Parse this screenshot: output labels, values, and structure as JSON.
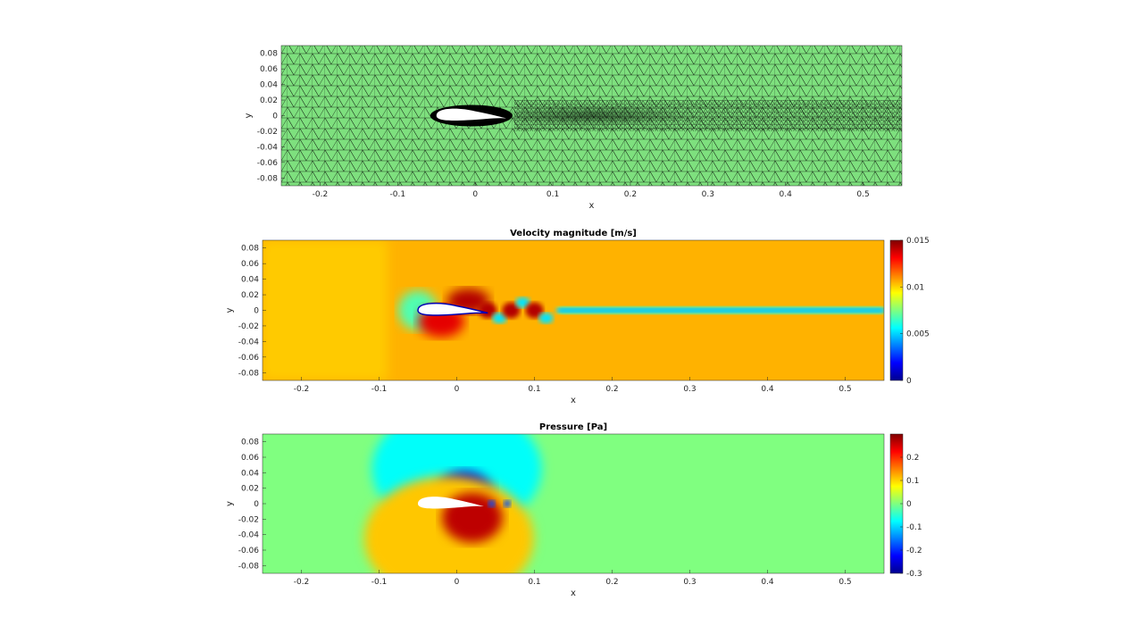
{
  "chart_data": [
    {
      "type": "mesh",
      "title": "",
      "xlabel": "x",
      "ylabel": "y",
      "xlim": [
        -0.25,
        0.55
      ],
      "ylim": [
        -0.09,
        0.09
      ],
      "xticks": [
        -0.2,
        -0.1,
        0,
        0.1,
        0.2,
        0.3,
        0.4,
        0.5
      ],
      "yticks": [
        0.08,
        0.06,
        0.04,
        0.02,
        0,
        -0.02,
        -0.04,
        -0.06,
        -0.08
      ],
      "xtick_labels": [
        "-0.2",
        "-0.1",
        "0",
        "0.1",
        "0.2",
        "0.3",
        "0.4",
        "0.5"
      ],
      "ytick_labels": [
        "0.08",
        "0.06",
        "0.04",
        "0.02",
        "0",
        "-0.02",
        "-0.04",
        "-0.06",
        "-0.08"
      ],
      "fill_color": "#7ee07e",
      "edge_color": "#000000",
      "airfoil_x": [
        -0.05,
        0.04
      ]
    },
    {
      "type": "heatmap",
      "title": "Velocity magnitude [m/s]",
      "xlabel": "x",
      "ylabel": "y",
      "xlim": [
        -0.25,
        0.55
      ],
      "ylim": [
        -0.09,
        0.09
      ],
      "xticks": [
        -0.2,
        -0.1,
        0,
        0.1,
        0.2,
        0.3,
        0.4,
        0.5
      ],
      "yticks": [
        0.08,
        0.06,
        0.04,
        0.02,
        0,
        -0.02,
        -0.04,
        -0.06,
        -0.08
      ],
      "xtick_labels": [
        "-0.2",
        "-0.1",
        "0",
        "0.1",
        "0.2",
        "0.3",
        "0.4",
        "0.5"
      ],
      "ytick_labels": [
        "0.08",
        "0.06",
        "0.04",
        "0.02",
        "0",
        "-0.02",
        "-0.04",
        "-0.06",
        "-0.08"
      ],
      "colormap": "jet",
      "clim": [
        0,
        0.015
      ],
      "colorbar_ticks": [
        0.015,
        0.01,
        0.005,
        0
      ],
      "colorbar_labels": [
        "0.015",
        "0.01",
        "0.005",
        "0"
      ],
      "freestream": 0.0105
    },
    {
      "type": "heatmap",
      "title": "Pressure [Pa]",
      "xlabel": "x",
      "ylabel": "y",
      "xlim": [
        -0.25,
        0.55
      ],
      "ylim": [
        -0.09,
        0.09
      ],
      "xticks": [
        -0.2,
        -0.1,
        0,
        0.1,
        0.2,
        0.3,
        0.4,
        0.5
      ],
      "yticks": [
        0.08,
        0.06,
        0.04,
        0.02,
        0,
        -0.02,
        -0.04,
        -0.06,
        -0.08
      ],
      "xtick_labels": [
        "-0.2",
        "-0.1",
        "0",
        "0.1",
        "0.2",
        "0.3",
        "0.4",
        "0.5"
      ],
      "ytick_labels": [
        "0.08",
        "0.06",
        "0.04",
        "0.02",
        "0",
        "-0.02",
        "-0.04",
        "-0.06",
        "-0.08"
      ],
      "colormap": "jet",
      "clim": [
        -0.3,
        0.3
      ],
      "colorbar_ticks": [
        0.2,
        0.1,
        0,
        -0.1,
        -0.2,
        -0.3
      ],
      "colorbar_labels": [
        "0.2",
        "0.1",
        "0",
        "-0.1",
        "-0.2",
        "-0.3"
      ],
      "freestream": 0.0
    }
  ]
}
